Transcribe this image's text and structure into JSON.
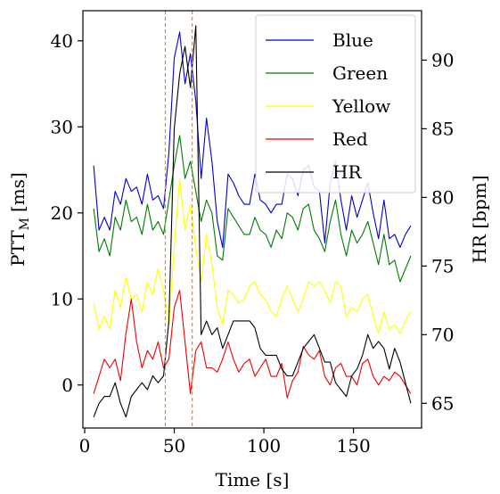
{
  "chart_data": {
    "type": "line",
    "xlabel": "Time [s]",
    "ylabel": "PTT",
    "ylabel_sub": "M",
    "ylabel_unit": "[ms]",
    "y2label": "HR [bpm]",
    "xlim": [
      -1,
      188
    ],
    "ylim": [
      -5,
      43.5
    ],
    "y2lim": [
      63.2,
      93.6
    ],
    "x_ticks": [
      0,
      50,
      100,
      150
    ],
    "y_ticks": [
      0,
      10,
      20,
      30,
      40
    ],
    "y2_ticks": [
      65,
      70,
      75,
      80,
      85,
      90
    ],
    "vlines": [
      45,
      60
    ],
    "legend_location": "upper right",
    "series": [
      {
        "name": "Blue",
        "axis": "left",
        "color": "#0000cc",
        "x": [
          5,
          8,
          11,
          14,
          17,
          20,
          23,
          26,
          29,
          32,
          35,
          38,
          41,
          44,
          47,
          50,
          53,
          56,
          59,
          62,
          65,
          68,
          71,
          74,
          77,
          80,
          83,
          86,
          89,
          92,
          95,
          98,
          101,
          104,
          107,
          110,
          113,
          116,
          119,
          122,
          125,
          128,
          131,
          134,
          137,
          140,
          143,
          146,
          149,
          152,
          155,
          158,
          161,
          164,
          167,
          170,
          173,
          176,
          179,
          182
        ],
        "y": [
          25.5,
          18,
          19.5,
          18,
          22.5,
          21,
          24,
          22.5,
          23,
          21,
          24.5,
          21.5,
          22,
          20.5,
          27,
          38,
          41,
          35,
          38.5,
          33,
          24,
          31,
          26,
          19,
          16,
          24.5,
          23.5,
          22,
          21,
          21,
          24.5,
          21.5,
          21,
          20,
          21,
          21,
          24.5,
          24,
          22,
          25,
          25.5,
          23,
          22.5,
          16.5,
          23.5,
          26,
          21.5,
          18,
          22,
          19.5,
          21.5,
          23.5,
          20,
          17,
          21.5,
          17,
          17.5,
          16,
          17.5,
          18.5
        ]
      },
      {
        "name": "Green",
        "axis": "left",
        "color": "#007a00",
        "x": [
          5,
          8,
          11,
          14,
          17,
          20,
          23,
          26,
          29,
          32,
          35,
          38,
          41,
          44,
          47,
          50,
          53,
          56,
          59,
          62,
          65,
          68,
          71,
          74,
          77,
          80,
          83,
          86,
          89,
          92,
          95,
          98,
          101,
          104,
          107,
          110,
          113,
          116,
          119,
          122,
          125,
          128,
          131,
          134,
          137,
          140,
          143,
          146,
          149,
          152,
          155,
          158,
          161,
          164,
          167,
          170,
          173,
          176,
          179,
          182
        ],
        "y": [
          20.5,
          15.5,
          17,
          15,
          19.5,
          18,
          21.5,
          19,
          19.5,
          17.5,
          21,
          18,
          19,
          17.5,
          21.5,
          25.5,
          29,
          24,
          26,
          22.5,
          19,
          21.5,
          20,
          15,
          14.5,
          20.5,
          19.5,
          18.5,
          17.5,
          17.5,
          19.5,
          18,
          17.5,
          16,
          18,
          17,
          20,
          19.5,
          18,
          20.5,
          21,
          18,
          17,
          15.5,
          19,
          21.5,
          17.5,
          15,
          18,
          16.5,
          17.5,
          19,
          16.5,
          14,
          17.5,
          14,
          14.5,
          12,
          13.5,
          15
        ]
      },
      {
        "name": "Yellow",
        "axis": "left",
        "color": "#ffff00",
        "x": [
          5,
          8,
          11,
          14,
          17,
          20,
          23,
          26,
          29,
          32,
          35,
          38,
          41,
          44,
          47,
          50,
          53,
          56,
          59,
          62,
          65,
          68,
          71,
          74,
          77,
          80,
          83,
          86,
          89,
          92,
          95,
          98,
          101,
          104,
          107,
          110,
          113,
          116,
          119,
          122,
          125,
          128,
          131,
          134,
          137,
          140,
          143,
          146,
          149,
          152,
          155,
          158,
          161,
          164,
          167,
          170,
          173,
          176,
          179,
          182
        ],
        "y": [
          9.5,
          6.5,
          8,
          6.5,
          11,
          9,
          12.5,
          10,
          10.5,
          8.5,
          12,
          10.5,
          13.5,
          11,
          7,
          16,
          24,
          18,
          21,
          16,
          12,
          17.5,
          14,
          9,
          7,
          11,
          10.5,
          9.5,
          10,
          11.5,
          12,
          10.5,
          10,
          8.5,
          8,
          10,
          11.5,
          10,
          8.5,
          10,
          12,
          11.5,
          12,
          11,
          9.5,
          12,
          11.5,
          8,
          9,
          8.5,
          10,
          10.5,
          8,
          6,
          8.5,
          6.5,
          7,
          6,
          7.5,
          8.5
        ]
      },
      {
        "name": "Red",
        "axis": "left",
        "color": "#ee0000",
        "x": [
          5,
          8,
          11,
          14,
          17,
          20,
          23,
          26,
          29,
          32,
          35,
          38,
          41,
          44,
          47,
          50,
          53,
          56,
          59,
          62,
          65,
          68,
          71,
          74,
          77,
          80,
          83,
          86,
          89,
          92,
          95,
          98,
          101,
          104,
          107,
          110,
          113,
          116,
          119,
          122,
          125,
          128,
          131,
          134,
          137,
          140,
          143,
          146,
          149,
          152,
          155,
          158,
          161,
          164,
          167,
          170,
          173,
          176,
          179,
          182
        ],
        "y": [
          -1,
          1,
          3,
          2,
          3,
          0.5,
          6,
          10,
          5,
          2,
          4,
          3,
          5,
          2,
          3,
          9,
          11,
          5,
          -1,
          4,
          5,
          2,
          2,
          1.5,
          3,
          5,
          3,
          1.5,
          2.5,
          3,
          1,
          2,
          3,
          1,
          1,
          2.5,
          -1.5,
          0.5,
          1.5,
          4.5,
          3.5,
          3,
          4,
          1,
          0,
          2,
          2.5,
          1,
          1,
          0,
          2.5,
          3,
          1,
          0,
          1,
          0.5,
          1.5,
          1,
          0,
          -1
        ]
      },
      {
        "name": "HR",
        "axis": "right",
        "color": "#000000",
        "x": [
          5,
          8,
          11,
          14,
          17,
          20,
          23,
          26,
          29,
          32,
          35,
          38,
          41,
          44,
          47,
          50,
          53,
          56,
          59,
          62,
          65,
          68,
          71,
          74,
          77,
          80,
          83,
          86,
          89,
          92,
          95,
          98,
          101,
          104,
          107,
          110,
          113,
          116,
          119,
          122,
          125,
          128,
          131,
          134,
          137,
          140,
          143,
          146,
          149,
          152,
          155,
          158,
          161,
          164,
          167,
          170,
          173,
          176,
          179,
          182
        ],
        "y": [
          64,
          65,
          65.5,
          65.5,
          66.5,
          65,
          64,
          65.5,
          66,
          66.5,
          66,
          67,
          66.5,
          67,
          71,
          85,
          89,
          91,
          88,
          92.5,
          70,
          71,
          70,
          70.5,
          69,
          70,
          71,
          71,
          71,
          71,
          70.5,
          69,
          68.5,
          68.5,
          68.5,
          67.5,
          67,
          67,
          68,
          69,
          69.5,
          70,
          69,
          68,
          68,
          66.5,
          66,
          65.5,
          67,
          67.5,
          68.5,
          70,
          69,
          69.5,
          69,
          67.5,
          69,
          68,
          66.5,
          65
        ]
      }
    ]
  }
}
